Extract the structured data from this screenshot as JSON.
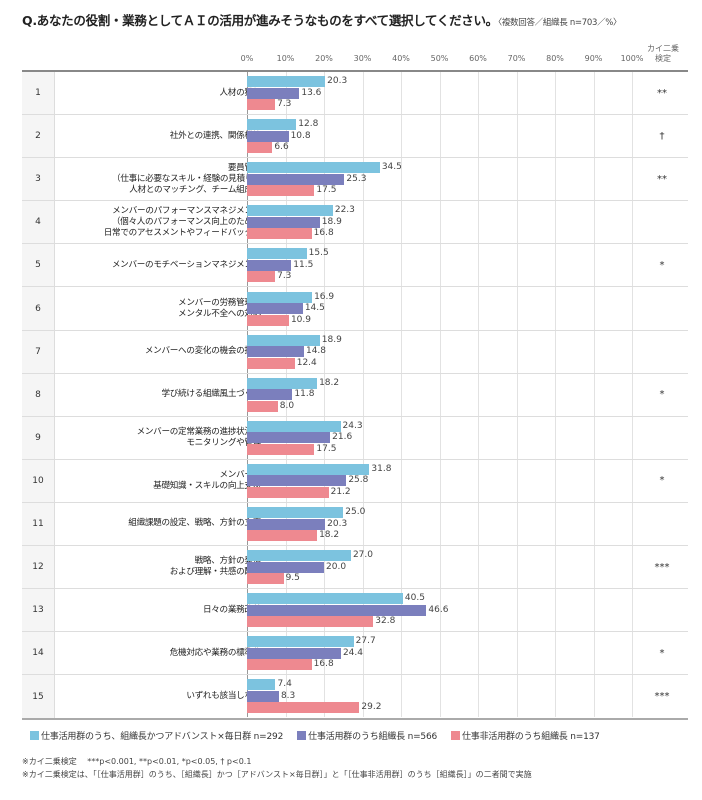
{
  "title": "Q.あなたの役割・業務としてＡＩの活用が進みそうなものをすべて選択してください。",
  "title_note": "〈複数回答／組織長 n=703／%〉",
  "significance_header": "カイ二乗\n検定",
  "chart_data": {
    "type": "bar",
    "orientation": "horizontal",
    "xlim": [
      0,
      100
    ],
    "ticks": [
      "0%",
      "10%",
      "20%",
      "30%",
      "40%",
      "50%",
      "60%",
      "70%",
      "80%",
      "90%",
      "100%"
    ],
    "grid": true,
    "legend_position": "bottom",
    "colors": [
      "#7cc3df",
      "#7b7fbd",
      "#ee8990"
    ],
    "series": [
      {
        "name": "仕事活用群のうち、組織長かつアドバンスト×毎日群 n=292",
        "values": [
          20.3,
          12.8,
          34.5,
          22.3,
          15.5,
          16.9,
          18.9,
          18.2,
          24.3,
          31.8,
          25.0,
          27.0,
          40.5,
          27.7,
          7.4
        ]
      },
      {
        "name": "仕事活用群のうち組織長 n=566",
        "values": [
          13.6,
          10.8,
          25.3,
          18.9,
          11.5,
          14.5,
          14.8,
          11.8,
          21.6,
          25.8,
          20.3,
          20.0,
          46.6,
          24.4,
          8.3
        ]
      },
      {
        "name": "仕事非活用群のうち組織長 n=137",
        "values": [
          7.3,
          6.6,
          17.5,
          16.8,
          7.3,
          10.9,
          12.4,
          8.0,
          17.5,
          21.2,
          18.2,
          9.5,
          32.8,
          16.8,
          29.2
        ]
      }
    ],
    "rows": [
      {
        "no": "1",
        "label": "人材の獲得",
        "sig": "**"
      },
      {
        "no": "2",
        "label": "社外との連携、関係構築",
        "sig": "†"
      },
      {
        "no": "3",
        "label": "要員管理\n（仕事に必要なスキル・経験の見積り、\n人材とのマッチング、チーム組成）",
        "sig": "**"
      },
      {
        "no": "4",
        "label": "メンバーのパフォーマンスマネジメント\n（個々人のパフォーマンス向上のための\n日常でのアセスメントやフィードバック）",
        "sig": ""
      },
      {
        "no": "5",
        "label": "メンバーのモチベーションマネジメント",
        "sig": "*"
      },
      {
        "no": "6",
        "label": "メンバーの労務管理、\nメンタル不全への対応",
        "sig": ""
      },
      {
        "no": "7",
        "label": "メンバーへの変化の機会の提供",
        "sig": ""
      },
      {
        "no": "8",
        "label": "学び続ける組織風土づくり",
        "sig": "*"
      },
      {
        "no": "9",
        "label": "メンバーの定常業務の進捗状況の\nモニタリングや管理",
        "sig": ""
      },
      {
        "no": "10",
        "label": "メンバーの\n基礎知識・スキルの向上支援",
        "sig": "*"
      },
      {
        "no": "11",
        "label": "組織課題の設定、戦略、方針の立案",
        "sig": ""
      },
      {
        "no": "12",
        "label": "戦略、方針の発信\nおよび理解・共感の醸成",
        "sig": "***"
      },
      {
        "no": "13",
        "label": "日々の業務改善",
        "sig": ""
      },
      {
        "no": "14",
        "label": "危機対応や業務の標準化",
        "sig": "*"
      },
      {
        "no": "15",
        "label": "いずれも該当しない",
        "sig": "***"
      }
    ]
  },
  "footnotes": [
    "※カイ二乗検定　 ***p<0.001, **p<0.01, *p<0.05, † p<0.1",
    "※カイ二乗検定は、「［仕事活用群］のうち、［組織長］かつ［アドバンスト×毎日群］」と「［仕事非活用群］のうち［組織長］」の二者間で実施"
  ]
}
